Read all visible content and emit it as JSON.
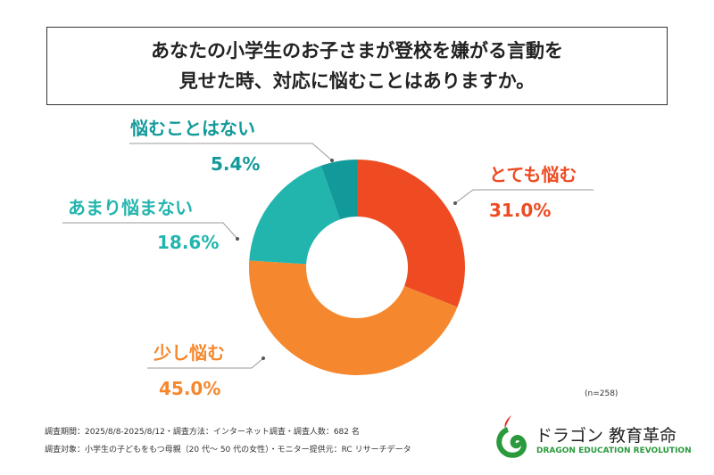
{
  "title_lines": [
    "あなたの小学生のお子さまが登校を嫌がる言動を",
    "見せた時、対応に悩むことはありますか。"
  ],
  "chart_data": {
    "type": "pie",
    "donut": true,
    "categories": [
      "とても悩む",
      "少し悩む",
      "あまり悩まない",
      "悩むことはない"
    ],
    "values": [
      31.0,
      45.0,
      18.6,
      5.4
    ],
    "value_labels": [
      "31.0%",
      "45.0%",
      "18.6%",
      "5.4%"
    ],
    "colors": [
      "#EE4B22",
      "#F5882E",
      "#22B5AE",
      "#12999A"
    ]
  },
  "sample_size": "(n=258)",
  "footer": [
    "調査期間：2025/8/8-2025/8/12・調査方法：インターネット調査・調査人数：682 名",
    "調査対象：小学生の子どもをもつ母親（20 代〜 50 代の女性）・モニター提供元：RC リサーチデータ"
  ],
  "logo": {
    "jp": "ドラゴン 教育革命",
    "en": "DRAGON EDUCATION REVOLUTION"
  }
}
